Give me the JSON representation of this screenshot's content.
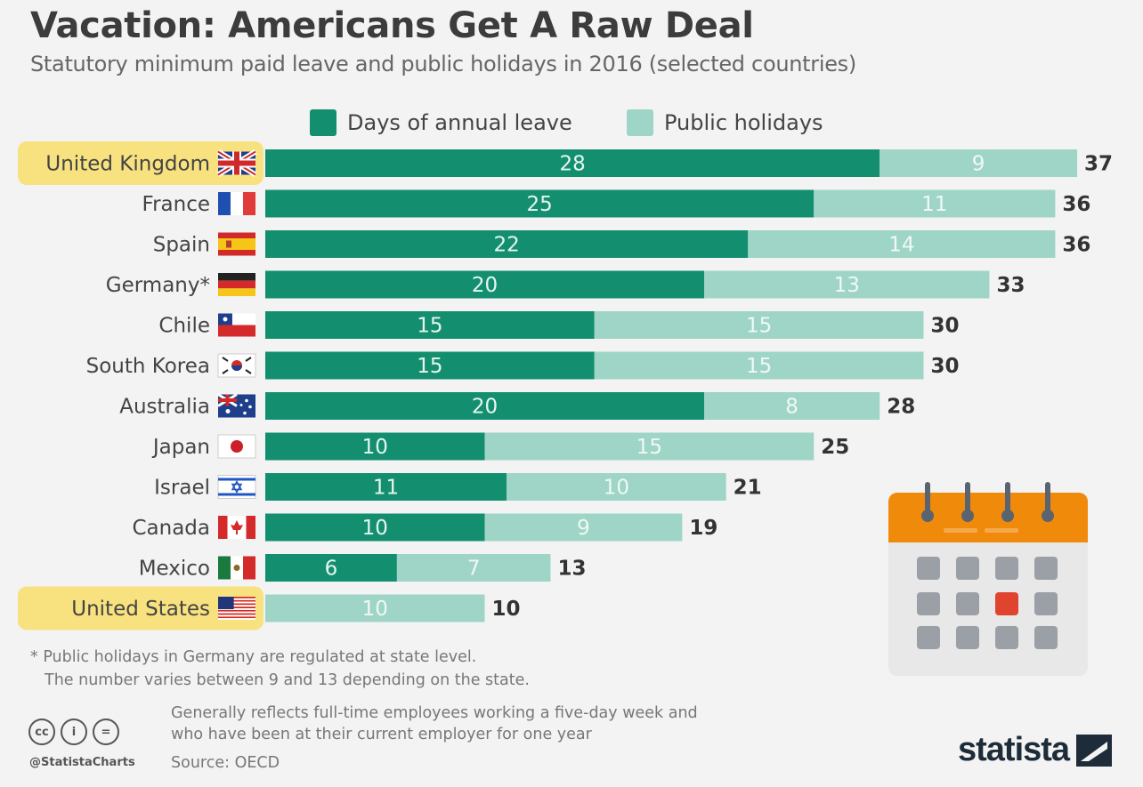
{
  "title": "Vacation: Americans Get A Raw Deal",
  "subtitle": "Statutory minimum paid leave and public holidays in 2016 (selected countries)",
  "colors": {
    "annual_leave": "#138f6f",
    "public_holidays": "#9fd5c6",
    "highlight": "#f8de6a"
  },
  "chart_data": {
    "type": "bar",
    "orientation": "horizontal",
    "stacked": true,
    "categories": [
      "United Kingdom",
      "France",
      "Spain",
      "Germany*",
      "Chile",
      "South Korea",
      "Australia",
      "Japan",
      "Israel",
      "Canada",
      "Mexico",
      "United States"
    ],
    "series": [
      {
        "name": "Days of annual leave",
        "values": [
          28,
          25,
          22,
          20,
          15,
          15,
          20,
          10,
          11,
          10,
          6,
          0
        ]
      },
      {
        "name": "Public holidays",
        "values": [
          9,
          11,
          14,
          13,
          15,
          15,
          8,
          15,
          10,
          9,
          7,
          10
        ]
      }
    ],
    "totals": [
      37,
      36,
      36,
      33,
      30,
      30,
      28,
      25,
      21,
      19,
      13,
      10
    ],
    "highlighted": [
      "United Kingdom",
      "United States"
    ],
    "flags": [
      "uk-flag-icon",
      "france-flag-icon",
      "spain-flag-icon",
      "germany-flag-icon",
      "chile-flag-icon",
      "south-korea-flag-icon",
      "australia-flag-icon",
      "japan-flag-icon",
      "israel-flag-icon",
      "canada-flag-icon",
      "mexico-flag-icon",
      "usa-flag-icon"
    ],
    "legend_position": "top"
  },
  "footnote": {
    "line1": "* Public holidays in Germany are regulated at state level.",
    "line2": "The number varies between 9 and 13 depending on the state."
  },
  "note": {
    "line1": "Generally reflects full-time employees working a five-day week and",
    "line2": "who have been at their current employer for one year"
  },
  "source": "Source: OECD",
  "handle": "@StatistaCharts",
  "brand": "statista",
  "cc_icons": [
    "cc-icon",
    "by-icon",
    "nd-icon"
  ],
  "cc_labels": [
    "cc",
    "i",
    "="
  ]
}
